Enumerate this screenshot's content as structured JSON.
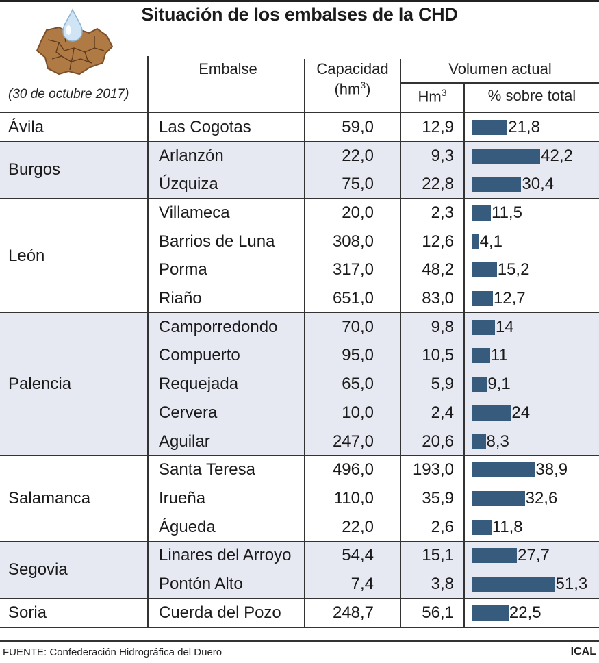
{
  "title": "Situación de los embalses de la CHD",
  "date": "(30 de octubre 2017)",
  "headers": {
    "embalse": "Embalse",
    "capacidad": "Capacidad",
    "capacidad_unit": "(hm",
    "capacidad_unit_sup": "3",
    "capacidad_unit_close": ")",
    "volumen": "Volumen actual",
    "hm3": "Hm",
    "hm3_sup": "3",
    "pct": "% sobre total"
  },
  "footer": {
    "source": "FUENTE: Confederación Hidrográfica del Duero",
    "brand": "ICAL"
  },
  "colors": {
    "bar": "#365b7c",
    "band": "#e6e8f2",
    "rule": "#333333"
  },
  "icons": {
    "logo": "dry-cracked-earth-map-with-water-drop-icon"
  },
  "chart_data": {
    "type": "table",
    "title": "Situación de los embalses de la CHD",
    "columns": [
      "Embalse",
      "Capacidad (hm3)",
      "Hm3",
      "% sobre total"
    ],
    "groups": [
      {
        "province": "Ávila",
        "rows": [
          {
            "reservoir": "Las Cogotas",
            "capacity": "59,0",
            "volume": "12,9",
            "pct": "21,8",
            "pct_value": 21.8
          }
        ]
      },
      {
        "province": "Burgos",
        "rows": [
          {
            "reservoir": "Arlanzón",
            "capacity": "22,0",
            "volume": "9,3",
            "pct": "42,2",
            "pct_value": 42.2
          },
          {
            "reservoir": "Úzquiza",
            "capacity": "75,0",
            "volume": "22,8",
            "pct": "30,4",
            "pct_value": 30.4
          }
        ]
      },
      {
        "province": "León",
        "rows": [
          {
            "reservoir": "Villameca",
            "capacity": "20,0",
            "volume": "2,3",
            "pct": "11,5",
            "pct_value": 11.5
          },
          {
            "reservoir": "Barrios de Luna",
            "capacity": "308,0",
            "volume": "12,6",
            "pct": "4,1",
            "pct_value": 4.1
          },
          {
            "reservoir": "Porma",
            "capacity": "317,0",
            "volume": "48,2",
            "pct": "15,2",
            "pct_value": 15.2
          },
          {
            "reservoir": "Riaño",
            "capacity": "651,0",
            "volume": "83,0",
            "pct": "12,7",
            "pct_value": 12.7
          }
        ]
      },
      {
        "province": "Palencia",
        "rows": [
          {
            "reservoir": "Camporredondo",
            "capacity": "70,0",
            "volume": "9,8",
            "pct": "14",
            "pct_value": 14
          },
          {
            "reservoir": "Compuerto",
            "capacity": "95,0",
            "volume": "10,5",
            "pct": "11",
            "pct_value": 11
          },
          {
            "reservoir": "Requejada",
            "capacity": "65,0",
            "volume": "5,9",
            "pct": "9,1",
            "pct_value": 9.1
          },
          {
            "reservoir": "Cervera",
            "capacity": "10,0",
            "volume": "2,4",
            "pct": "24",
            "pct_value": 24
          },
          {
            "reservoir": "Aguilar",
            "capacity": "247,0",
            "volume": "20,6",
            "pct": "8,3",
            "pct_value": 8.3
          }
        ]
      },
      {
        "province": "Salamanca",
        "rows": [
          {
            "reservoir": "Santa Teresa",
            "capacity": "496,0",
            "volume": "193,0",
            "pct": "38,9",
            "pct_value": 38.9
          },
          {
            "reservoir": "Irueña",
            "capacity": "110,0",
            "volume": "35,9",
            "pct": "32,6",
            "pct_value": 32.6
          },
          {
            "reservoir": "Águeda",
            "capacity": "22,0",
            "volume": "2,6",
            "pct": "11,8",
            "pct_value": 11.8
          }
        ]
      },
      {
        "province": "Segovia",
        "rows": [
          {
            "reservoir": "Linares del Arroyo",
            "capacity": "54,4",
            "volume": "15,1",
            "pct": "27,7",
            "pct_value": 27.7
          },
          {
            "reservoir": "Pontón Alto",
            "capacity": "7,4",
            "volume": "3,8",
            "pct": "51,3",
            "pct_value": 51.3
          }
        ]
      },
      {
        "province": "Soria",
        "rows": [
          {
            "reservoir": "Cuerda del Pozo",
            "capacity": "248,7",
            "volume": "56,1",
            "pct": "22,5",
            "pct_value": 22.5
          }
        ]
      }
    ]
  }
}
